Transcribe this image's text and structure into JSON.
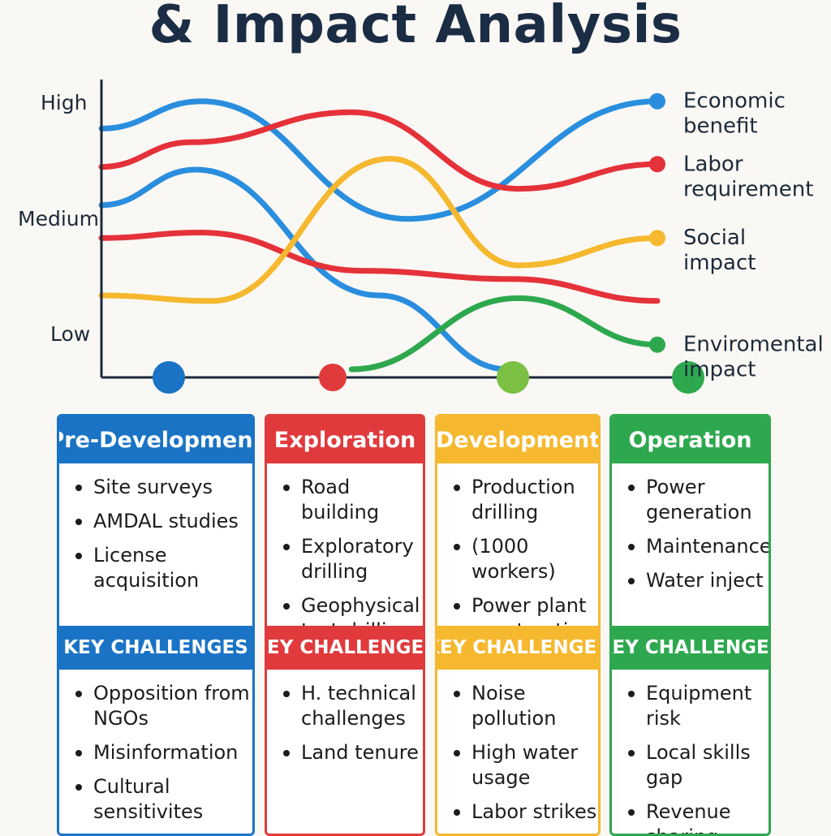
{
  "title": "& Impact Analysis",
  "chart_data": {
    "type": "line",
    "y_levels": [
      "High",
      "Medium",
      "Low"
    ],
    "ylim": [
      0,
      1
    ],
    "stages": [
      {
        "name": "Pre-Development",
        "color": "#1a73c4"
      },
      {
        "name": "Exploration",
        "color": "#e03a3c"
      },
      {
        "name": "Development",
        "color": "#7bc043"
      },
      {
        "name": "Operation",
        "color": "#2ea84f"
      }
    ],
    "series": [
      {
        "name": "Economic benefit",
        "color": "#2a8ede",
        "points": [
          [
            0,
            0.88
          ],
          [
            0.18,
            0.98
          ],
          [
            0.55,
            0.55
          ],
          [
            1,
            0.98
          ]
        ]
      },
      {
        "name": "Labor requirement",
        "color": "#e5323a",
        "points": [
          [
            0,
            0.74
          ],
          [
            0.16,
            0.83
          ],
          [
            0.45,
            0.94
          ],
          [
            0.75,
            0.66
          ],
          [
            1,
            0.75
          ]
        ]
      },
      {
        "name": "Social impact",
        "color": "#f5b82e",
        "points": [
          [
            0,
            0.27
          ],
          [
            0.2,
            0.25
          ],
          [
            0.52,
            0.77
          ],
          [
            0.75,
            0.38
          ],
          [
            1,
            0.48
          ]
        ]
      },
      {
        "name": "Enviromental impact",
        "color": "#2ea84f",
        "points": [
          [
            0.45,
            0.0
          ],
          [
            0.75,
            0.26
          ],
          [
            1,
            0.09
          ]
        ]
      }
    ],
    "extra_curves": [
      {
        "color": "#2a8ede",
        "points": [
          [
            0,
            0.6
          ],
          [
            0.17,
            0.73
          ],
          [
            0.5,
            0.27
          ],
          [
            0.73,
            0.0
          ]
        ]
      },
      {
        "color": "#e5323a",
        "points": [
          [
            0,
            0.48
          ],
          [
            0.18,
            0.5
          ],
          [
            0.47,
            0.36
          ],
          [
            0.74,
            0.33
          ],
          [
            1,
            0.25
          ]
        ]
      }
    ]
  },
  "columns": [
    {
      "title": "Pre-Development",
      "color": "#1a73c4",
      "items": [
        "Site surveys",
        "AMDAL studies",
        "License acquisition"
      ],
      "challenges_title": "KEY CHALLENGES",
      "challenges": [
        "Opposition from NGOs",
        "Misinformation",
        "Cultural sensitivites"
      ]
    },
    {
      "title": "Exploration",
      "color": "#e03a3c",
      "items": [
        "Road building",
        "Exploratory drilling",
        "Geophysical test drilling"
      ],
      "challenges_title": "KEY CHALLENGES",
      "challenges": [
        "H. technical challenges",
        "Land tenure"
      ]
    },
    {
      "title": "Development",
      "color": "#f5b82e",
      "items": [
        "Production drilling",
        "(1000 workers)",
        "Power plant construction"
      ],
      "challenges_title": "KEY CHALLENGES",
      "challenges": [
        "Noise pollution",
        "High water usage",
        "Labor strikes"
      ]
    },
    {
      "title": "Operation",
      "color": "#2ea84f",
      "items": [
        "Power generation",
        "Maintenance",
        "Water inject"
      ],
      "challenges_title": "KEY CHALLENGES",
      "challenges": [
        "Equipment risk",
        "Local skills gap",
        "Revenue sharing"
      ]
    }
  ]
}
